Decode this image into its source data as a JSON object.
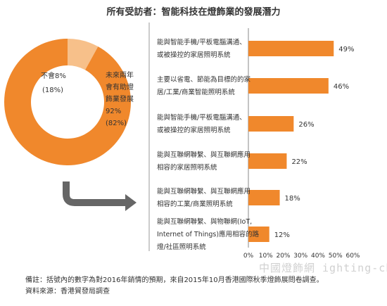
{
  "title": "所有受訪者：智能科技在燈飾業的發展潛力",
  "colors": {
    "accent": "#f0882c",
    "accent_light": "#f7c08a",
    "arrow": "#666666",
    "text": "#333333"
  },
  "chart_data": [
    {
      "type": "pie",
      "variant": "donut",
      "slices": [
        {
          "label": "不會8%",
          "pct_label": "(18%)",
          "value": 8
        },
        {
          "label": "未來兩年會有助燈飾業發展",
          "label_lines": [
            "未來兩年",
            "會有助燈",
            "飾業發展",
            "92%",
            "(82%)"
          ],
          "value": 92
        }
      ]
    },
    {
      "type": "bar",
      "orientation": "horizontal",
      "categories": [
        "能與智能手機/平板電腦溝通、或被操控的家居照明系統",
        "主要以省電、節能為目標的的家居/工業/商業智能照明系統",
        "能與智能手機/平板電腦溝通、或被操控的家居照明系統",
        "能與互聯網聯繫、與互聯網應用相容的家居照明系統",
        "能與互聯網聯繫、與互聯網應用相容的工業/商業照明系統",
        "能與互聯網聯繫、與物聯網(IoT, Internet of Things)應用相容的路燈/社區照明系統"
      ],
      "category_lines": [
        [
          "能與智能手機/平板電腦溝通、",
          "或被操控的家居照明系統"
        ],
        [
          "主要以省電、節能為目標的的家",
          "居/工業/商業智能照明系統"
        ],
        [
          "能與智能手機/平板電腦溝通、",
          "或被操控的家居照明系統"
        ],
        [
          "能與互聯網聯繫、與互聯網應用",
          "相容的家居照明系統"
        ],
        [
          "能與互聯網聯繫、與互聯網應用",
          "相容的工業/商業照明系統"
        ],
        [
          "能與互聯網聯繫、與物聯網(IoT,",
          "Internet of Things)應用相容的路",
          "燈/社區照明系統"
        ]
      ],
      "values": [
        49,
        46,
        26,
        22,
        18,
        12
      ],
      "data_labels": [
        "49%",
        "46%",
        "26%",
        "22%",
        "18%",
        "12%"
      ],
      "xlim": [
        0,
        60
      ],
      "x_ticks": [
        "0%",
        "10%",
        "20%",
        "30%",
        "40%",
        "50%",
        "60%"
      ],
      "grid": false
    }
  ],
  "notes": {
    "line1": "備註：括號內的數字為對2016年銷情的預期，來自2015年10月香港國際秋季燈飾展問卷調查。",
    "line2": "資料來源：香港貿發局調查"
  },
  "watermark": "中國燈飾網 ighting-china"
}
